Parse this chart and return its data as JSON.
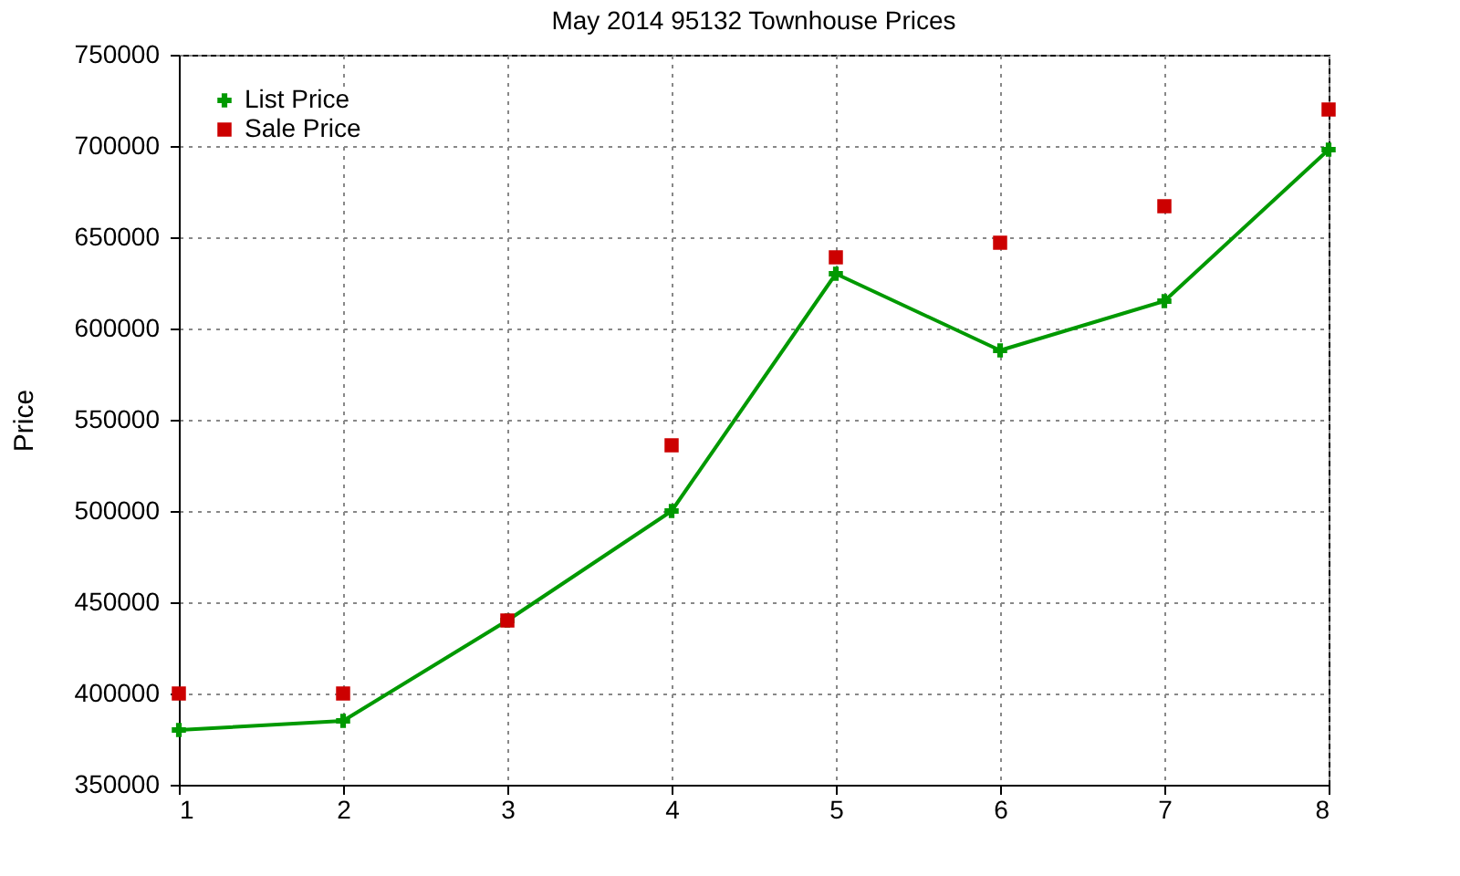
{
  "chart_data": {
    "type": "line",
    "title": "May 2014 95132 Townhouse Prices",
    "ylabel": "Price",
    "x": [
      1,
      2,
      3,
      4,
      5,
      6,
      7,
      8
    ],
    "series": [
      {
        "name": "List Price",
        "color": "#009900",
        "marker": "cross",
        "values": [
          380000,
          385000,
          440000,
          500000,
          630000,
          588000,
          615000,
          698000
        ]
      },
      {
        "name": "Sale Price",
        "type": "scatter",
        "color": "#cc0000",
        "marker": "square",
        "values": [
          400000,
          400000,
          440000,
          536000,
          639000,
          647000,
          667000,
          720000
        ]
      }
    ],
    "xlim": [
      1,
      8
    ],
    "xticks": [
      1,
      2,
      3,
      4,
      5,
      6,
      7,
      8
    ],
    "ylim": [
      350000,
      750000
    ],
    "yticks": [
      350000,
      400000,
      450000,
      500000,
      550000,
      600000,
      650000,
      700000,
      750000
    ],
    "grid": true,
    "legend": "top left"
  }
}
